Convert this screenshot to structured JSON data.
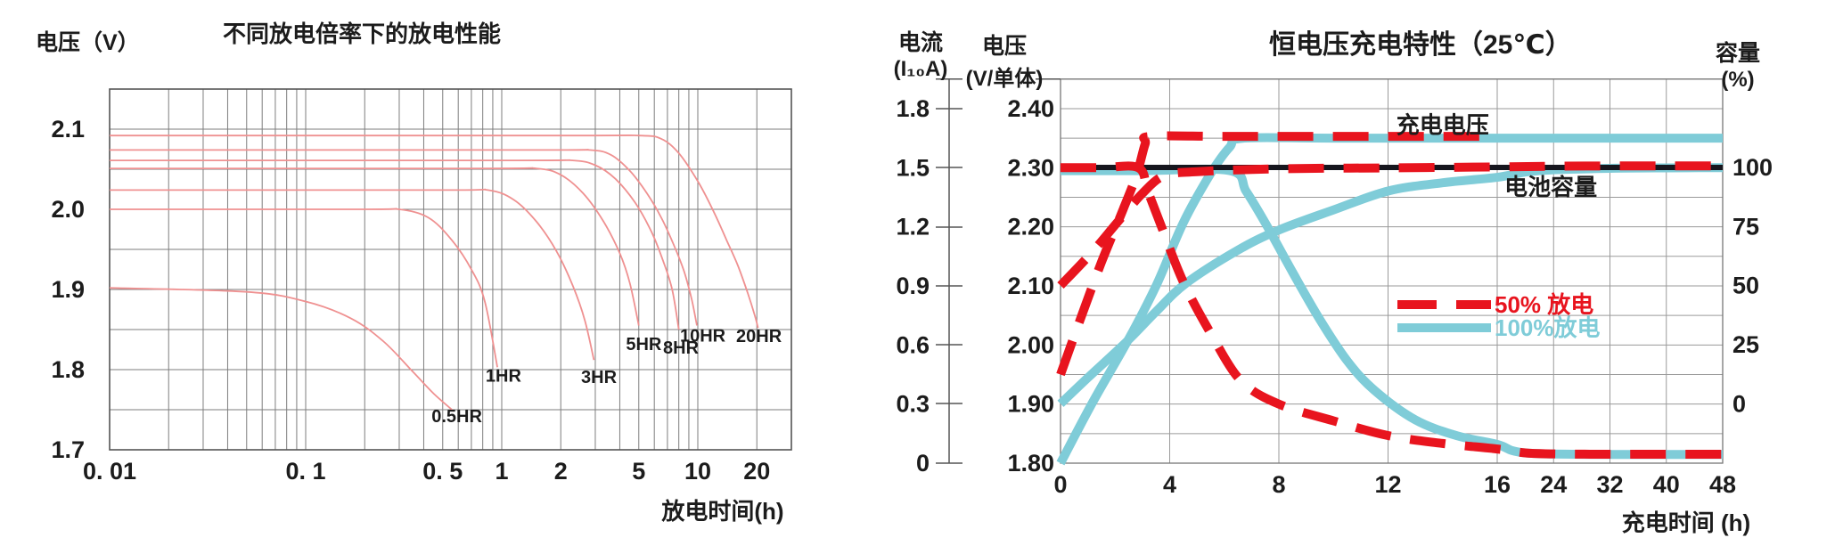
{
  "page": {
    "background": "#ffffff"
  },
  "chart_data": [
    {
      "type": "line",
      "title": "不同放电倍率下的放电性能",
      "y_axis": {
        "label": "电压（V）",
        "range": [
          1.7,
          2.15
        ],
        "ticks": [
          {
            "v": 2.1,
            "label": "2.1"
          },
          {
            "v": 2.0,
            "label": "2.0"
          },
          {
            "v": 1.9,
            "label": "1.9"
          },
          {
            "v": 1.8,
            "label": "1.8"
          },
          {
            "v": 1.7,
            "label": "1.7"
          }
        ]
      },
      "x_axis": {
        "label": "放电时间(h)",
        "scale": "log",
        "range": [
          0.01,
          30
        ],
        "ticks": [
          {
            "v": 0.01,
            "label": "0. 01"
          },
          {
            "v": 0.1,
            "label": "0. 1"
          },
          {
            "v": 0.5,
            "label": "0. 5"
          },
          {
            "v": 1,
            "label": "1"
          },
          {
            "v": 2,
            "label": "2"
          },
          {
            "v": 5,
            "label": "5"
          },
          {
            "v": 10,
            "label": "10"
          },
          {
            "v": 20,
            "label": "20"
          }
        ]
      },
      "curve_color": "#ef9191",
      "grid": true,
      "curves": [
        {
          "label": "0.5HR",
          "label_at": [
            0.59,
            1.742
          ],
          "points": [
            [
              0.01,
              1.902
            ],
            [
              0.05,
              1.897
            ],
            [
              0.1,
              1.885
            ],
            [
              0.17,
              1.864
            ],
            [
              0.25,
              1.835
            ],
            [
              0.35,
              1.798
            ],
            [
              0.45,
              1.77
            ],
            [
              0.57,
              1.748
            ]
          ]
        },
        {
          "label": "1HR",
          "label_at": [
            1.02,
            1.793
          ],
          "points": [
            [
              0.01,
              2.0
            ],
            [
              0.2,
              2.0
            ],
            [
              0.3,
              2.0
            ],
            [
              0.42,
              1.99
            ],
            [
              0.55,
              1.963
            ],
            [
              0.7,
              1.925
            ],
            [
              0.82,
              1.885
            ],
            [
              0.95,
              1.803
            ]
          ]
        },
        {
          "label": "3HR",
          "label_at": [
            3.13,
            1.791
          ],
          "points": [
            [
              0.01,
              2.024
            ],
            [
              0.5,
              2.024
            ],
            [
              0.85,
              2.024
            ],
            [
              1.15,
              2.012
            ],
            [
              1.5,
              1.985
            ],
            [
              1.9,
              1.948
            ],
            [
              2.3,
              1.905
            ],
            [
              2.65,
              1.862
            ],
            [
              2.95,
              1.812
            ]
          ]
        },
        {
          "label": "5HR",
          "label_at": [
            5.3,
            1.832
          ],
          "points": [
            [
              0.01,
              2.051
            ],
            [
              0.8,
              2.051
            ],
            [
              1.5,
              2.051
            ],
            [
              2.0,
              2.043
            ],
            [
              2.6,
              2.02
            ],
            [
              3.3,
              1.985
            ],
            [
              4.0,
              1.945
            ],
            [
              4.5,
              1.908
            ],
            [
              5.0,
              1.855
            ]
          ]
        },
        {
          "label": "8HR",
          "label_at": [
            8.2,
            1.828
          ],
          "points": [
            [
              0.01,
              2.061
            ],
            [
              1.2,
              2.061
            ],
            [
              2.3,
              2.061
            ],
            [
              3.0,
              2.055
            ],
            [
              3.8,
              2.038
            ],
            [
              4.8,
              2.008
            ],
            [
              5.8,
              1.972
            ],
            [
              6.6,
              1.938
            ],
            [
              7.4,
              1.9
            ],
            [
              8.0,
              1.85
            ]
          ]
        },
        {
          "label": "10HR",
          "label_at": [
            10.6,
            1.843
          ],
          "points": [
            [
              0.01,
              2.074
            ],
            [
              1.5,
              2.074
            ],
            [
              2.8,
              2.074
            ],
            [
              3.6,
              2.068
            ],
            [
              4.5,
              2.048
            ],
            [
              5.5,
              2.02
            ],
            [
              6.5,
              1.99
            ],
            [
              7.5,
              1.957
            ],
            [
              8.5,
              1.923
            ],
            [
              9.3,
              1.888
            ],
            [
              9.9,
              1.855
            ]
          ]
        },
        {
          "label": "20HR",
          "label_at": [
            20.5,
            1.842
          ],
          "points": [
            [
              0.01,
              2.092
            ],
            [
              2,
              2.092
            ],
            [
              5,
              2.092
            ],
            [
              6.5,
              2.088
            ],
            [
              8,
              2.07
            ],
            [
              10,
              2.035
            ],
            [
              12,
              1.998
            ],
            [
              14,
              1.962
            ],
            [
              16,
              1.93
            ],
            [
              18,
              1.895
            ],
            [
              19.5,
              1.868
            ],
            [
              20.3,
              1.852
            ]
          ]
        }
      ]
    },
    {
      "type": "line",
      "title": "恒电压充电特性（25℃）",
      "x_axis": {
        "label": "充电时间 (h)",
        "ticks": [
          0,
          4,
          8,
          12,
          16,
          24,
          32,
          40,
          48
        ],
        "note": "scale expanded 0-16 h, compressed 16-48 h"
      },
      "current_axis": {
        "name": "电流",
        "unit": "(I₁₀A)",
        "ticks": [
          "1.8",
          "1.5",
          "1.2",
          "0.9",
          "0.6",
          "0.3",
          "0"
        ]
      },
      "voltage_axis": {
        "name": "电压",
        "unit": "(V/单体)",
        "ticks": [
          "2.40",
          "2.30",
          "2.20",
          "2.10",
          "2.00",
          "1.90",
          "1.80"
        ]
      },
      "capacity_axis": {
        "name": "容量",
        "unit": "(%)",
        "ticks": [
          "100",
          "75",
          "50",
          "25",
          "0"
        ]
      },
      "annotations": [
        {
          "text": "充电电压",
          "at_time_volt": [
            14.0,
            2.372
          ]
        },
        {
          "text": "电池容量",
          "at_time_volt": [
            23.6,
            2.267
          ]
        }
      ],
      "reference_line": {
        "meaning": "100% capacity / 2.30 V level",
        "capacity_value": 100,
        "color": "#16161e"
      },
      "legend": [
        {
          "label": "50% 放电",
          "color": "#e8141e",
          "dashed": true
        },
        {
          "label": "100%放电",
          "color": "#7fccd8",
          "dashed": false
        }
      ],
      "series": [
        {
          "group": "50% 放电",
          "color": "#e8141e",
          "dashed": true,
          "voltage": [
            [
              0,
              1.95
            ],
            [
              0.65,
              2.034
            ],
            [
              1.5,
              2.14
            ],
            [
              2.3,
              2.23
            ],
            [
              2.8,
              2.29
            ],
            [
              3.1,
              2.34
            ],
            [
              3.3,
              2.353
            ],
            [
              6,
              2.353
            ],
            [
              10,
              2.353
            ],
            [
              16,
              2.353
            ]
          ],
          "current": [
            [
              0,
              1.5
            ],
            [
              1.5,
              1.5
            ],
            [
              2.85,
              1.5
            ],
            [
              3.2,
              1.38
            ],
            [
              3.7,
              1.2
            ],
            [
              4.5,
              0.92
            ],
            [
              5.5,
              0.66
            ],
            [
              6.6,
              0.42
            ],
            [
              8,
              0.3
            ],
            [
              10,
              0.215
            ],
            [
              12,
              0.14
            ],
            [
              14,
              0.1
            ],
            [
              16,
              0.072
            ],
            [
              20,
              0.052
            ],
            [
              24,
              0.047
            ],
            [
              32,
              0.045
            ],
            [
              40,
              0.045
            ],
            [
              48,
              0.045
            ]
          ],
          "capacity": [
            [
              0,
              50
            ],
            [
              1.15,
              64
            ],
            [
              2.1,
              77
            ],
            [
              3,
              89
            ],
            [
              3.8,
              96.5
            ],
            [
              5,
              98.2
            ],
            [
              8,
              99.4
            ],
            [
              12,
              99.8
            ],
            [
              16,
              100.2
            ],
            [
              24,
              100.5
            ],
            [
              32,
              100.6
            ],
            [
              40,
              100.6
            ],
            [
              48,
              100.6
            ]
          ]
        },
        {
          "group": "100%放电",
          "color": "#7fccd8",
          "dashed": false,
          "voltage": [
            [
              0,
              1.8
            ],
            [
              1.2,
              1.905
            ],
            [
              2.45,
              2.006
            ],
            [
              3.5,
              2.1
            ],
            [
              4.5,
              2.207
            ],
            [
              5.5,
              2.29
            ],
            [
              6.2,
              2.335
            ],
            [
              6.7,
              2.35
            ],
            [
              10,
              2.35
            ],
            [
              20,
              2.35
            ],
            [
              48,
              2.35
            ]
          ],
          "current": [
            [
              0,
              1.485
            ],
            [
              3,
              1.485
            ],
            [
              6.2,
              1.485
            ],
            [
              6.8,
              1.38
            ],
            [
              7.5,
              1.22
            ],
            [
              8.5,
              0.97
            ],
            [
              9.5,
              0.73
            ],
            [
              10.5,
              0.52
            ],
            [
              11.5,
              0.37
            ],
            [
              13,
              0.22
            ],
            [
              14.5,
              0.14
            ],
            [
              16,
              0.095
            ],
            [
              18,
              0.065
            ],
            [
              20,
              0.052
            ],
            [
              24,
              0.046
            ],
            [
              32,
              0.044
            ],
            [
              48,
              0.044
            ]
          ],
          "capacity": [
            [
              0,
              0
            ],
            [
              1,
              11
            ],
            [
              2.4,
              26
            ],
            [
              3.5,
              39
            ],
            [
              4.6,
              51
            ],
            [
              6.5,
              65
            ],
            [
              8,
              73.5
            ],
            [
              10,
              82
            ],
            [
              12,
              90
            ],
            [
              14,
              93.5
            ],
            [
              16,
              95.8
            ],
            [
              20,
              98
            ],
            [
              24,
              99
            ],
            [
              32,
              99.6
            ],
            [
              40,
              99.8
            ],
            [
              48,
              99.9
            ]
          ]
        }
      ]
    }
  ]
}
